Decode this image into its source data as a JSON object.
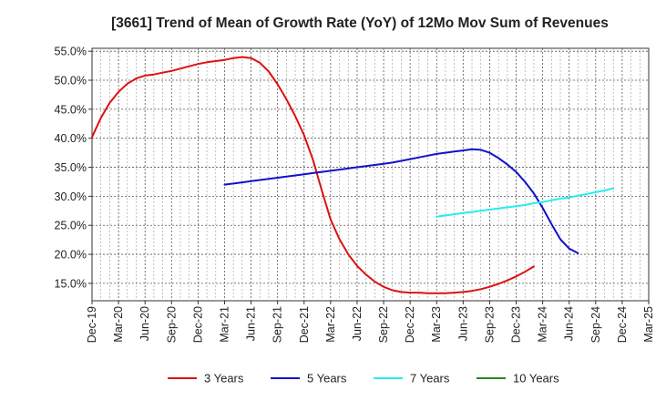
{
  "chart_data": {
    "type": "line",
    "title": "[3661]  Trend of Mean of Growth Rate (YoY) of 12Mo Mov Sum of Revenues",
    "xlabel": "",
    "ylabel": "",
    "ylim": [
      12.0,
      55.5
    ],
    "grid": true,
    "legend_position": "bottom",
    "y_ticks": [
      15,
      20,
      25,
      30,
      35,
      40,
      45,
      50,
      55
    ],
    "y_tick_labels": [
      "15.0%",
      "20.0%",
      "25.0%",
      "30.0%",
      "35.0%",
      "40.0%",
      "45.0%",
      "50.0%",
      "55.0%"
    ],
    "x_categories": [
      "Dec-19",
      "Mar-20",
      "Jun-20",
      "Sep-20",
      "Dec-20",
      "Mar-21",
      "Jun-21",
      "Sep-21",
      "Dec-21",
      "Mar-22",
      "Jun-22",
      "Sep-22",
      "Dec-22",
      "Mar-23",
      "Jun-23",
      "Sep-23",
      "Dec-23",
      "Mar-24",
      "Jun-24",
      "Sep-24",
      "Dec-24",
      "Mar-25"
    ],
    "series": [
      {
        "name": "3 Years",
        "color": "#dd1111",
        "start_index": 0,
        "values": [
          40.2,
          43.5,
          46.1,
          48.0,
          49.4,
          50.3,
          50.8,
          51.0,
          51.3,
          51.6,
          52.0,
          52.4,
          52.8,
          53.1,
          53.3,
          53.5,
          53.8,
          54.0,
          53.8,
          53.0,
          51.5,
          49.3,
          46.7,
          43.8,
          40.5,
          36.3,
          31.0,
          26.0,
          22.6,
          20.0,
          18.0,
          16.5,
          15.3,
          14.4,
          13.8,
          13.5,
          13.4,
          13.4,
          13.3,
          13.3,
          13.3,
          13.4,
          13.5,
          13.7,
          14.0,
          14.4,
          14.9,
          15.5,
          16.2,
          17.0,
          17.9
        ]
      },
      {
        "name": "5 Years",
        "color": "#1111cc",
        "start_index": 15,
        "values": [
          32.0,
          32.2,
          32.4,
          32.6,
          32.8,
          33.0,
          33.2,
          33.4,
          33.6,
          33.8,
          34.0,
          34.2,
          34.4,
          34.6,
          34.8,
          35.0,
          35.2,
          35.4,
          35.6,
          35.8,
          36.1,
          36.4,
          36.7,
          37.0,
          37.3,
          37.5,
          37.7,
          37.9,
          38.1,
          38.0,
          37.5,
          36.6,
          35.5,
          34.2,
          32.5,
          30.5,
          28.0,
          25.2,
          22.6,
          21.0,
          20.2
        ]
      },
      {
        "name": "7 Years",
        "color": "#22eeee",
        "start_index": 39,
        "values": [
          26.5,
          26.7,
          26.9,
          27.1,
          27.3,
          27.5,
          27.7,
          27.9,
          28.1,
          28.3,
          28.5,
          28.8,
          29.0,
          29.3,
          29.6,
          29.8,
          30.1,
          30.4,
          30.7,
          31.0,
          31.4
        ]
      },
      {
        "name": "10 Years",
        "color": "#228822",
        "start_index": 0,
        "values": []
      }
    ]
  }
}
